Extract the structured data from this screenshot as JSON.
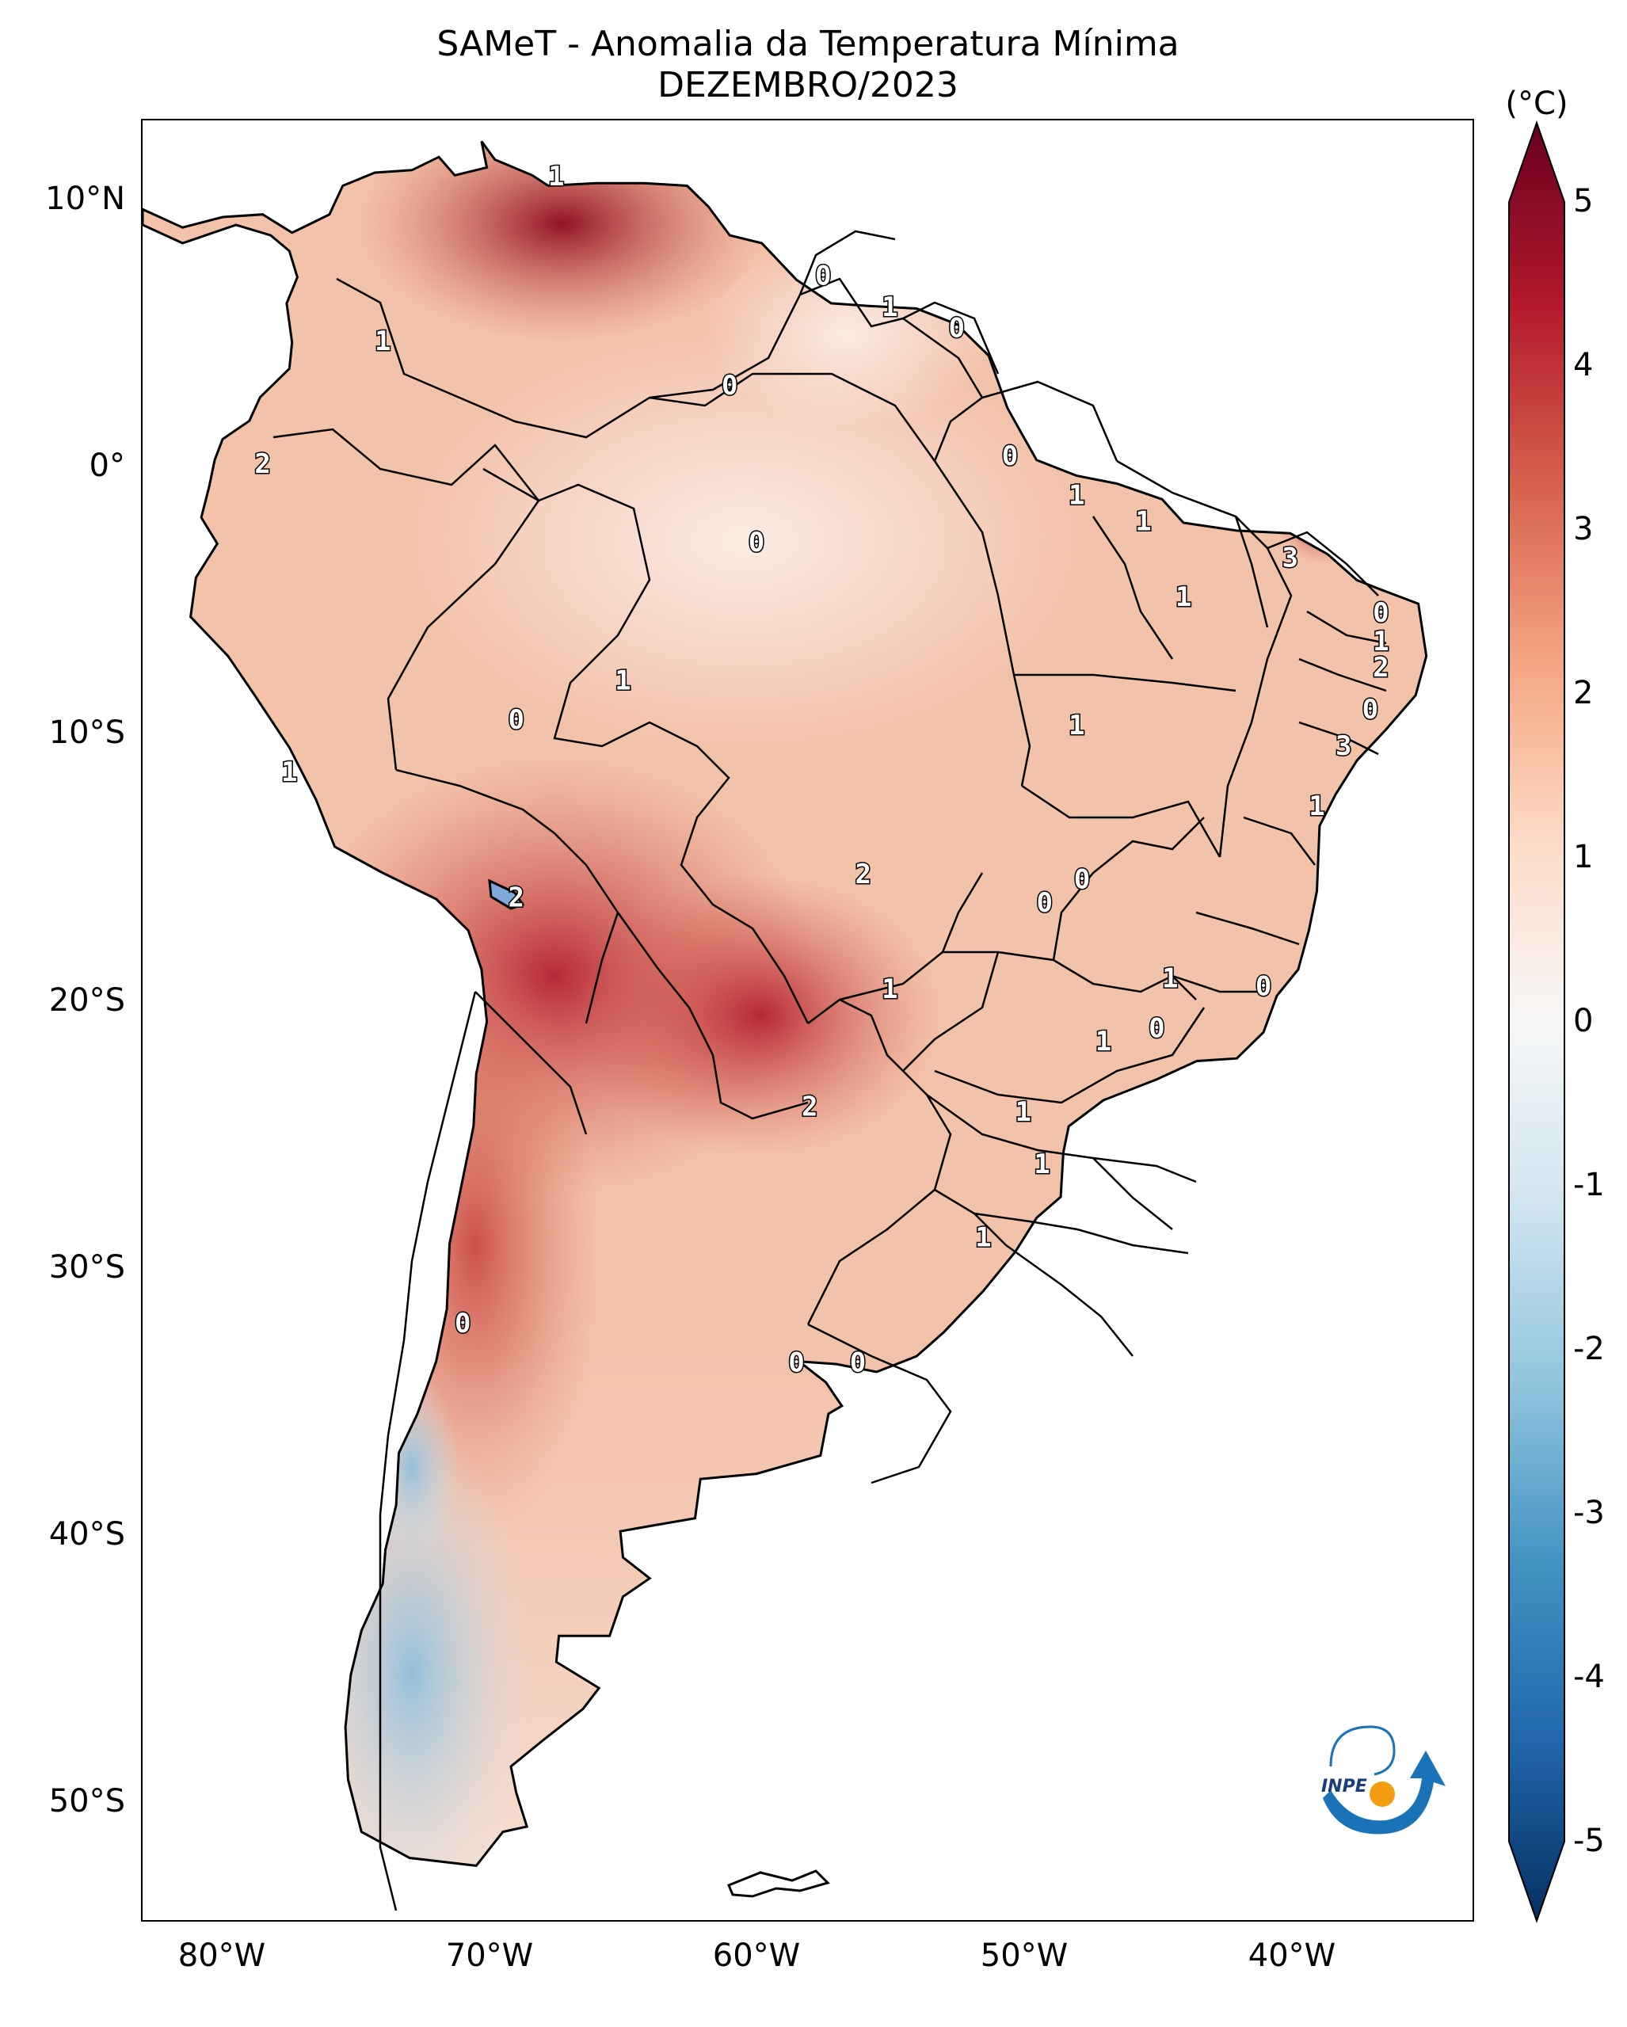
{
  "title": {
    "line1": "SAMeT - Anomalia da Temperatura Mínima",
    "line2": "DEZEMBRO/2023"
  },
  "colorbar": {
    "unit": "(°C)",
    "ticks": [
      "5",
      "4",
      "3",
      "2",
      "1",
      "0",
      "-1",
      "-2",
      "-3",
      "-4",
      "-5"
    ],
    "range": [
      -5,
      5
    ],
    "colormap": "RdBu_r",
    "colors": [
      "#053061",
      "#2166ac",
      "#4393c3",
      "#92c5de",
      "#d1e5f0",
      "#f7f7f7",
      "#fddbc7",
      "#f4a582",
      "#d6604d",
      "#b2182b",
      "#67001f"
    ]
  },
  "axes": {
    "lat_labels": [
      "10°N",
      "0°",
      "10°S",
      "20°S",
      "30°S",
      "40°S",
      "50°S"
    ],
    "lon_labels": [
      "80°W",
      "70°W",
      "60°W",
      "50°W",
      "40°W"
    ]
  },
  "contour_labels": [
    {
      "text": "1",
      "lon": -67.5,
      "lat": 10.8
    },
    {
      "text": "1",
      "lon": -74.0,
      "lat": 4.5
    },
    {
      "text": "0",
      "lon": -57.5,
      "lat": 7.0
    },
    {
      "text": "1",
      "lon": -55.0,
      "lat": 5.8
    },
    {
      "text": "0",
      "lon": -52.5,
      "lat": 5.0
    },
    {
      "text": "0",
      "lon": -61.0,
      "lat": 2.8
    },
    {
      "text": "2",
      "lon": -78.5,
      "lat": -0.2
    },
    {
      "text": "0",
      "lon": -50.5,
      "lat": 0.1
    },
    {
      "text": "1",
      "lon": -48.0,
      "lat": -1.4
    },
    {
      "text": "0",
      "lon": -60.0,
      "lat": -3.2
    },
    {
      "text": "1",
      "lon": -45.5,
      "lat": -2.4
    },
    {
      "text": "3",
      "lon": -40.0,
      "lat": -3.8
    },
    {
      "text": "1",
      "lon": -44.0,
      "lat": -5.3
    },
    {
      "text": "0",
      "lon": -36.6,
      "lat": -5.9
    },
    {
      "text": "1",
      "lon": -36.6,
      "lat": -7.0
    },
    {
      "text": "2",
      "lon": -36.6,
      "lat": -8.0
    },
    {
      "text": "0",
      "lon": -37.0,
      "lat": -9.6
    },
    {
      "text": "1",
      "lon": -65.0,
      "lat": -8.5
    },
    {
      "text": "0",
      "lon": -69.0,
      "lat": -10.0
    },
    {
      "text": "1",
      "lon": -48.0,
      "lat": -10.2
    },
    {
      "text": "3",
      "lon": -38.0,
      "lat": -11.0
    },
    {
      "text": "1",
      "lon": -77.5,
      "lat": -12.0
    },
    {
      "text": "1",
      "lon": -39.0,
      "lat": -13.3
    },
    {
      "text": "2",
      "lon": -56.0,
      "lat": -15.9
    },
    {
      "text": "0",
      "lon": -47.8,
      "lat": -16.1
    },
    {
      "text": "0",
      "lon": -49.2,
      "lat": -17.0
    },
    {
      "text": "2",
      "lon": -69.0,
      "lat": -16.8
    },
    {
      "text": "1",
      "lon": -55.0,
      "lat": -20.3
    },
    {
      "text": "1",
      "lon": -44.5,
      "lat": -19.9
    },
    {
      "text": "0",
      "lon": -41.0,
      "lat": -20.2
    },
    {
      "text": "1",
      "lon": -47.0,
      "lat": -22.3
    },
    {
      "text": "0",
      "lon": -45.0,
      "lat": -21.8
    },
    {
      "text": "2",
      "lon": -58.0,
      "lat": -24.8
    },
    {
      "text": "1",
      "lon": -50.0,
      "lat": -25.0
    },
    {
      "text": "1",
      "lon": -49.3,
      "lat": -27.0
    },
    {
      "text": "1",
      "lon": -51.5,
      "lat": -29.8
    },
    {
      "text": "0",
      "lon": -71.0,
      "lat": -33.1
    },
    {
      "text": "0",
      "lon": -58.5,
      "lat": -34.6
    },
    {
      "text": "0",
      "lon": -56.2,
      "lat": -34.6
    }
  ],
  "logo": {
    "text": "INPE"
  }
}
